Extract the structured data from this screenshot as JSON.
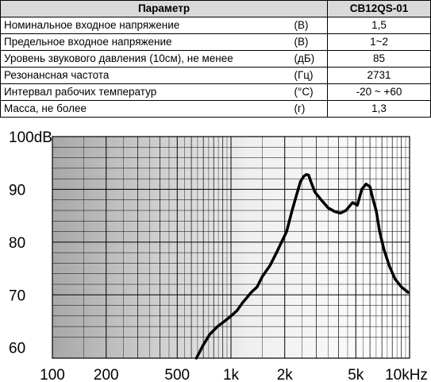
{
  "table": {
    "header": {
      "param": "Параметр",
      "value": "CB12QS-01"
    },
    "rows": [
      {
        "param": "Номинальное входное напряжение",
        "unit": "(В)",
        "value": "1,5"
      },
      {
        "param": "Предельное входное напряжение",
        "unit": "(В)",
        "value": "1~2"
      },
      {
        "param": "Уровень звукового давления (10см), не менее",
        "unit": "(дБ)",
        "value": "85"
      },
      {
        "param": "Резонансная частота",
        "unit": "(Гц)",
        "value": "2731"
      },
      {
        "param": "Интервал рабочих температур",
        "unit": "(°C)",
        "value": "-20 ~ +60"
      },
      {
        "param": "Масса, не более",
        "unit": "(г)",
        "value": "1,3"
      }
    ]
  },
  "chart_data": {
    "type": "line",
    "title": "",
    "xlabel": "",
    "ylabel": "",
    "xscale": "log",
    "xlim": [
      100,
      10000
    ],
    "ylim": [
      58,
      100
    ],
    "grid": true,
    "x_tick_labels": [
      "100",
      "200",
      "500",
      "1k",
      "2k",
      "5k",
      "10kHz"
    ],
    "x_tick_values": [
      100,
      200,
      500,
      1000,
      2000,
      5000,
      10000
    ],
    "y_tick_labels": [
      "100dB",
      "90",
      "80",
      "70",
      "60"
    ],
    "y_tick_values": [
      100,
      90,
      80,
      70,
      60
    ],
    "series": [
      {
        "x": [
          640,
          700,
          760,
          840,
          920,
          1000,
          1080,
          1160,
          1230,
          1300,
          1400,
          1500,
          1650,
          1800,
          1950,
          2050,
          2200,
          2330,
          2450,
          2560,
          2640,
          2720,
          2800,
          2950,
          3200,
          3500,
          3800,
          4100,
          4400,
          4800,
          5100,
          5400,
          5700,
          6000,
          6200,
          6500,
          6800,
          7200,
          7700,
          8300,
          9000,
          9800
        ],
        "y": [
          58,
          60.5,
          62.5,
          64,
          65,
          66,
          67,
          68.5,
          69.5,
          70.5,
          71.5,
          73.5,
          75.5,
          78,
          80.5,
          82,
          86,
          89,
          91.5,
          92.5,
          92.8,
          92.7,
          91.5,
          89.5,
          88,
          86.5,
          85.8,
          85.5,
          86,
          87.5,
          87,
          90,
          91,
          90.5,
          88.5,
          86,
          82,
          78.5,
          75.5,
          73,
          71.5,
          70.5
        ]
      }
    ]
  }
}
